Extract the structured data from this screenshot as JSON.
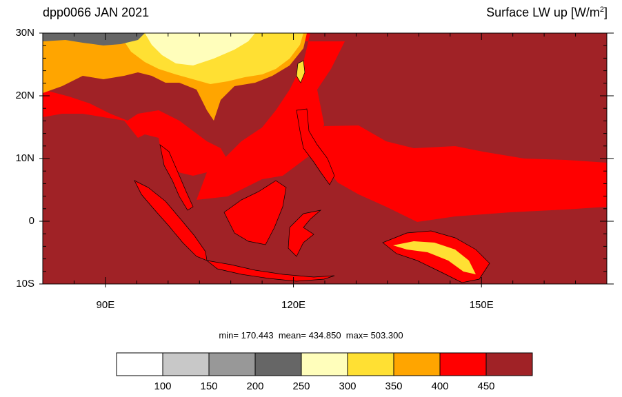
{
  "title_left": "dpp0066 JAN 2021",
  "title_right": {
    "text": "Surface LW up [W/m",
    "sup": "2",
    "close": "]"
  },
  "map": {
    "lon_range": [
      80,
      170
    ],
    "lat_range": [
      -10,
      30
    ],
    "lat_ticks": [
      {
        "label": "30N",
        "value": 30
      },
      {
        "label": "20N",
        "value": 20
      },
      {
        "label": "10N",
        "value": 10
      },
      {
        "label": "0",
        "value": 0
      },
      {
        "label": "10S",
        "value": -10
      }
    ],
    "lon_ticks": [
      {
        "label": "90E",
        "value": 90
      },
      {
        "label": "120E",
        "value": 120
      },
      {
        "label": "150E",
        "value": 150
      }
    ],
    "colors": {
      "sea_tropical": "#a02226",
      "warm": "#ff0000",
      "orange": "#ffa500",
      "yellow": "#ffe033",
      "pale": "#fffebb",
      "dark_gray": "#666666"
    }
  },
  "stats": {
    "min_label": "min=",
    "min": "170.443",
    "mean_label": "mean=",
    "mean": "434.850",
    "max_label": "max=",
    "max": "503.300"
  },
  "colorbar": {
    "levels": [
      "100",
      "150",
      "200",
      "250",
      "300",
      "350",
      "400",
      "450"
    ],
    "colors": [
      "#ffffff",
      "#c8c8c8",
      "#989898",
      "#666666",
      "#fffebb",
      "#ffe033",
      "#ffa500",
      "#ff0000",
      "#a02226"
    ]
  }
}
